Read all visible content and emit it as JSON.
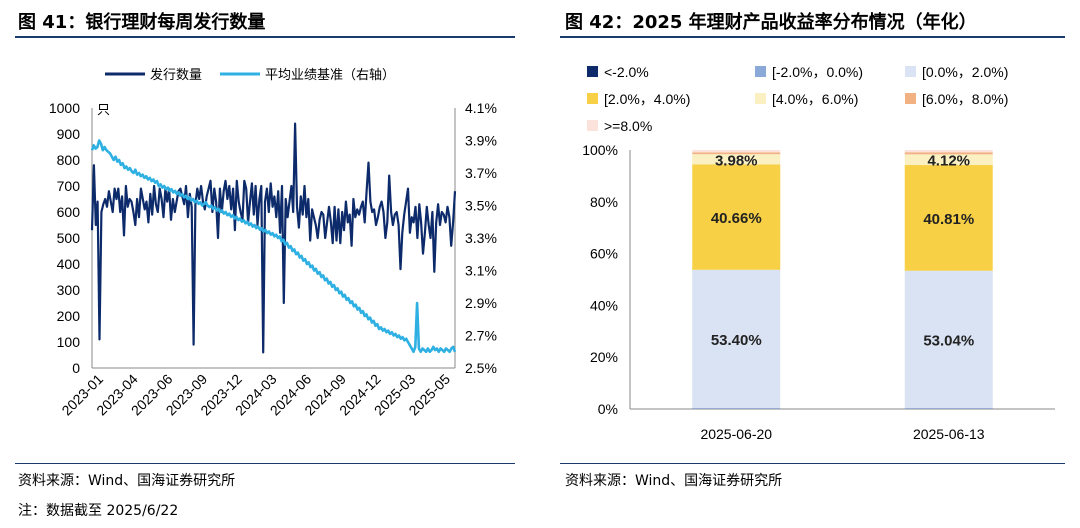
{
  "left": {
    "title": "图 41：银行理财每周发行数量",
    "source": "资料来源：Wind、国海证券研究所",
    "note": "注：数据截至 2025/6/22",
    "legend": [
      "发行数量",
      "平均业绩基准（右轴）"
    ],
    "unit_label": "只",
    "left_ticks": [
      "0",
      "100",
      "200",
      "300",
      "400",
      "500",
      "600",
      "700",
      "800",
      "900",
      "1000"
    ],
    "right_ticks": [
      "2.5%",
      "2.7%",
      "2.9%",
      "3.1%",
      "3.3%",
      "3.5%",
      "3.7%",
      "3.9%",
      "4.1%"
    ],
    "x_ticks": [
      "2023-01",
      "2023-04",
      "2023-06",
      "2023-09",
      "2023-12",
      "2024-03",
      "2024-06",
      "2024-09",
      "2024-12",
      "2025-03",
      "2025-05"
    ],
    "colors": {
      "count": "#0d2b6b",
      "benchmark": "#2eb0e3"
    }
  },
  "right": {
    "title": "图 42：2025 年理财产品收益率分布情况（年化）",
    "source": "资料来源：Wind、国海证券研究所",
    "legend": [
      {
        "label": "<-2.0%",
        "color": "#0d2b6b"
      },
      {
        "label": "[-2.0%，0.0%)",
        "color": "#8aa8d8"
      },
      {
        "label": "[0.0%，2.0%)",
        "color": "#d9e3f3"
      },
      {
        "label": "[2.0%，4.0%)",
        "color": "#f7d046"
      },
      {
        "label": "[4.0%，6.0%)",
        "color": "#fbf0c2"
      },
      {
        "label": "[6.0%，8.0%)",
        "color": "#f2b183"
      },
      {
        "label": ">=8.0%",
        "color": "#fbe3dc"
      }
    ],
    "y_ticks": [
      "0%",
      "20%",
      "40%",
      "60%",
      "80%",
      "100%"
    ]
  },
  "chart_data": [
    {
      "type": "line",
      "title": "银行理财每周发行数量",
      "ylabel": "只",
      "ylim": [
        0,
        1000
      ],
      "y2lim": [
        2.5,
        4.1
      ],
      "series": [
        {
          "name": "发行数量",
          "axis": "left",
          "values": [
            530,
            780,
            550,
            640,
            110,
            600,
            630,
            650,
            620,
            680,
            640,
            600,
            690,
            650,
            690,
            600,
            660,
            510,
            700,
            620,
            650,
            640,
            600,
            550,
            650,
            580,
            690,
            650,
            610,
            640,
            560,
            670,
            590,
            700,
            630,
            600,
            690,
            650,
            580,
            690,
            640,
            690,
            570,
            650,
            600,
            640,
            680,
            690,
            660,
            630,
            700,
            580,
            670,
            620,
            90,
            630,
            690,
            650,
            700,
            640,
            610,
            660,
            690,
            720,
            600,
            690,
            640,
            500,
            690,
            600,
            680,
            720,
            650,
            700,
            610,
            690,
            530,
            720,
            640,
            600,
            570,
            720,
            690,
            560,
            640,
            710,
            590,
            700,
            550,
            650,
            700,
            60,
            640,
            690,
            600,
            710,
            620,
            660,
            580,
            680,
            520,
            700,
            250,
            650,
            580,
            640,
            700,
            600,
            940,
            620,
            540,
            660,
            590,
            700,
            580,
            650,
            490,
            610,
            580,
            550,
            500,
            570,
            600,
            590,
            500,
            560,
            620,
            560,
            480,
            620,
            490,
            610,
            480,
            600,
            530,
            640,
            560,
            590,
            470,
            650,
            580,
            610,
            590,
            620,
            640,
            560,
            680,
            790,
            640,
            600,
            610,
            550,
            580,
            620,
            640,
            600,
            500,
            560,
            740,
            600,
            550,
            590,
            600,
            550,
            380,
            520,
            590,
            640,
            690,
            520,
            580,
            560,
            620,
            500,
            630,
            560,
            440,
            520,
            620,
            550,
            500,
            600,
            370,
            560,
            630,
            550,
            600,
            590,
            560,
            620,
            580,
            470,
            560,
            680
          ]
        },
        {
          "name": "平均业绩基准（右轴）",
          "axis": "right",
          "values": [
            3.84,
            3.87,
            3.85,
            3.86,
            3.9,
            3.88,
            3.84,
            3.86,
            3.84,
            3.83,
            3.82,
            3.8,
            3.78,
            3.8,
            3.77,
            3.78,
            3.75,
            3.76,
            3.73,
            3.74,
            3.72,
            3.73,
            3.71,
            3.7,
            3.72,
            3.69,
            3.7,
            3.68,
            3.69,
            3.67,
            3.68,
            3.66,
            3.67,
            3.65,
            3.66,
            3.64,
            3.65,
            3.62,
            3.63,
            3.61,
            3.62,
            3.6,
            3.61,
            3.59,
            3.6,
            3.58,
            3.59,
            3.57,
            3.58,
            3.56,
            3.57,
            3.55,
            3.56,
            3.54,
            3.55,
            3.53,
            3.54,
            3.52,
            3.53,
            3.51,
            3.52,
            3.5,
            3.51,
            3.52,
            3.5,
            3.49,
            3.5,
            3.48,
            3.49,
            3.47,
            3.48,
            3.46,
            3.47,
            3.45,
            3.46,
            3.44,
            3.45,
            3.43,
            3.44,
            3.42,
            3.43,
            3.41,
            3.42,
            3.4,
            3.41,
            3.39,
            3.4,
            3.38,
            3.39,
            3.37,
            3.38,
            3.36,
            3.37,
            3.35,
            3.36,
            3.34,
            3.35,
            3.33,
            3.34,
            3.32,
            3.33,
            3.31,
            3.32,
            3.3,
            3.31,
            3.28,
            3.29,
            3.26,
            3.27,
            3.24,
            3.25,
            3.22,
            3.23,
            3.2,
            3.21,
            3.18,
            3.19,
            3.16,
            3.17,
            3.14,
            3.15,
            3.12,
            3.13,
            3.1,
            3.11,
            3.08,
            3.09,
            3.06,
            3.07,
            3.04,
            3.05,
            3.02,
            3.03,
            3.0,
            3.01,
            2.98,
            2.99,
            2.96,
            2.97,
            2.94,
            2.95,
            2.92,
            2.93,
            2.9,
            2.91,
            2.88,
            2.89,
            2.86,
            2.87,
            2.84,
            2.85,
            2.82,
            2.83,
            2.8,
            2.81,
            2.78,
            2.79,
            2.76,
            2.77,
            2.74,
            2.75,
            2.73,
            2.74,
            2.72,
            2.73,
            2.71,
            2.72,
            2.7,
            2.71,
            2.69,
            2.7,
            2.68,
            2.69,
            2.67,
            2.68,
            2.66,
            2.64,
            2.62,
            2.6,
            2.63,
            2.9,
            2.62,
            2.6,
            2.62,
            2.61,
            2.6,
            2.62,
            2.6,
            2.61,
            2.63,
            2.61,
            2.62,
            2.6,
            2.62,
            2.61,
            2.6,
            2.62,
            2.61,
            2.6,
            2.62,
            2.63,
            2.6
          ]
        }
      ],
      "x_ticks": [
        "2023-01",
        "2023-04",
        "2023-06",
        "2023-09",
        "2023-12",
        "2024-03",
        "2024-06",
        "2024-09",
        "2024-12",
        "2025-03",
        "2025-05"
      ]
    },
    {
      "type": "bar",
      "stacked": true,
      "title": "2025 年理财产品收益率分布情况（年化）",
      "categories": [
        "2025-06-20",
        "2025-06-13"
      ],
      "ylim": [
        0,
        100
      ],
      "series": [
        {
          "name": "<-2.0%",
          "values": [
            0.05,
            0.05
          ]
        },
        {
          "name": "[-2.0%，0.0%)",
          "values": [
            0.3,
            0.3
          ]
        },
        {
          "name": "[0.0%，2.0%)",
          "values": [
            53.4,
            53.04
          ]
        },
        {
          "name": "[2.0%，4.0%)",
          "values": [
            40.66,
            40.81
          ]
        },
        {
          "name": "[4.0%，6.0%)",
          "values": [
            3.98,
            4.12
          ]
        },
        {
          "name": "[6.0%，8.0%)",
          "values": [
            0.7,
            0.8
          ]
        },
        {
          "name": ">=8.0%",
          "values": [
            0.91,
            0.88
          ]
        }
      ],
      "data_labels": [
        [
          "53.40%",
          "40.66%",
          "3.98%"
        ],
        [
          "53.04%",
          "40.81%",
          "4.12%"
        ]
      ]
    }
  ]
}
